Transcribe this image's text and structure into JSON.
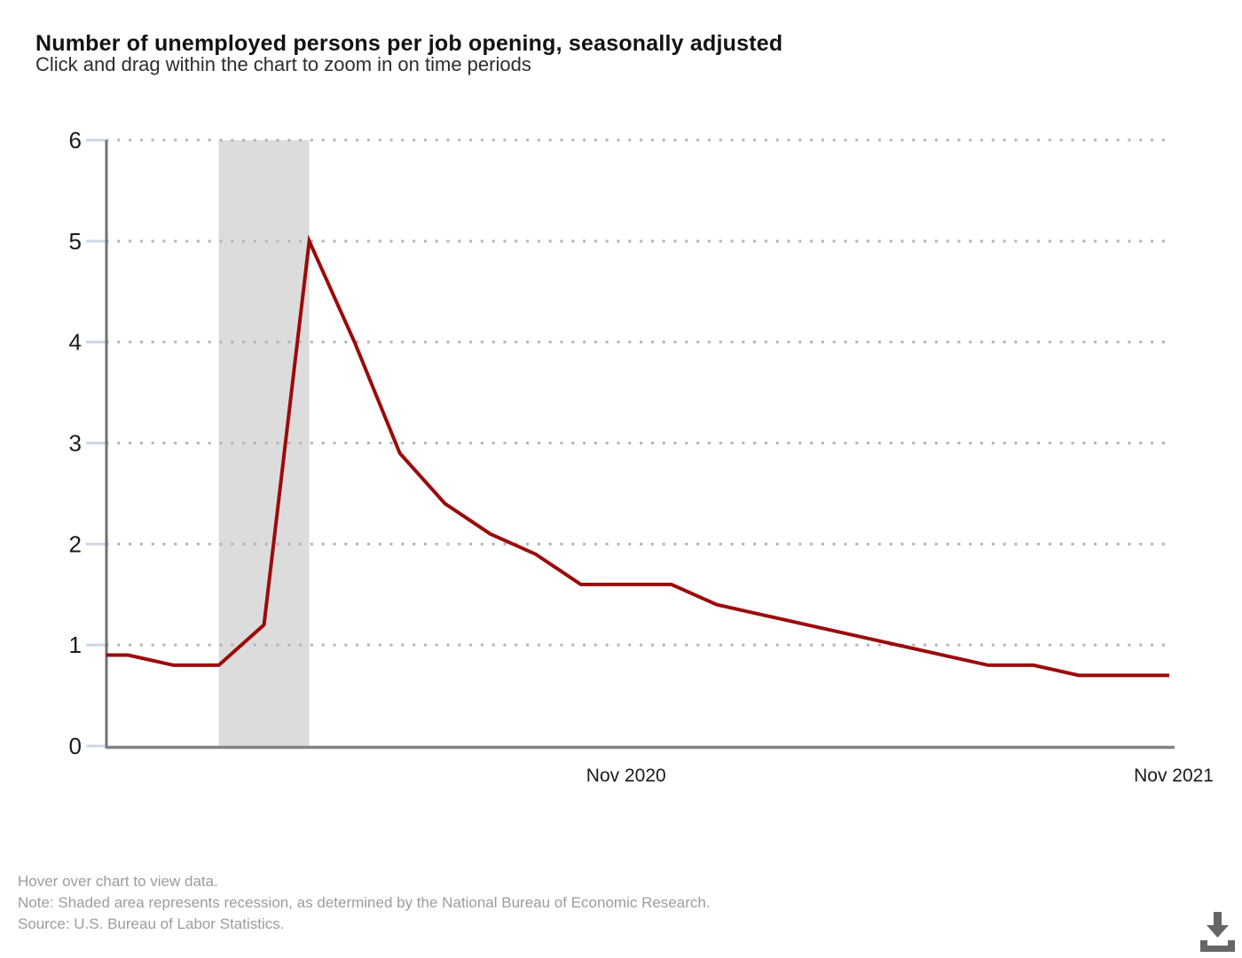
{
  "header": {
    "title": "Number of unemployed persons per job opening, seasonally adjusted",
    "subtitle": "Click and drag within the chart to zoom in on time periods"
  },
  "chart_data": {
    "type": "line",
    "series_name": "Number of unemployed persons per job opening, seasonally adjusted",
    "x": [
      "Nov 2019",
      "Dec 2019",
      "Jan 2020",
      "Feb 2020",
      "Mar 2020",
      "Apr 2020",
      "May 2020",
      "Jun 2020",
      "Jul 2020",
      "Aug 2020",
      "Sep 2020",
      "Oct 2020",
      "Nov 2020",
      "Dec 2020",
      "Jan 2021",
      "Feb 2021",
      "Mar 2021",
      "Apr 2021",
      "May 2021",
      "Jun 2021",
      "Jul 2021",
      "Aug 2021",
      "Sep 2021",
      "Oct 2021",
      "Nov 2021"
    ],
    "values": [
      0.9,
      0.9,
      0.8,
      0.8,
      1.2,
      5.0,
      4.0,
      2.9,
      2.4,
      2.1,
      1.9,
      1.6,
      1.6,
      1.6,
      1.4,
      1.3,
      1.2,
      1.1,
      1.0,
      0.9,
      0.8,
      0.8,
      0.7,
      0.7,
      0.7
    ],
    "ylim": [
      0,
      6
    ],
    "yticks": [
      0,
      1,
      2,
      3,
      4,
      5,
      6
    ],
    "xtick_labels": [
      "Nov 2020",
      "Nov 2021"
    ],
    "grid": "horizontal-dotted",
    "legend": "none",
    "recession_band": {
      "start": "Feb 2020",
      "end": "Apr 2020"
    }
  },
  "footer": {
    "lines": [
      "Hover over chart to view data.",
      "Note: Shaded area represents recession, as determined by the National Bureau of Economic Research.",
      "Source: U.S. Bureau of Labor Statistics."
    ]
  },
  "icons": {
    "download": "download-icon"
  },
  "colors": {
    "line": "#9b0b0b",
    "recession_band": "#dcdcdc",
    "gridline": "#b4b4b4",
    "tick": "#ccd8e8",
    "axis_vertical": "#717171",
    "axis_horizontal": "#828282",
    "axis_label": "#1a1a1a",
    "footer_text": "#9c9c9c",
    "download_icon": "#666666"
  }
}
